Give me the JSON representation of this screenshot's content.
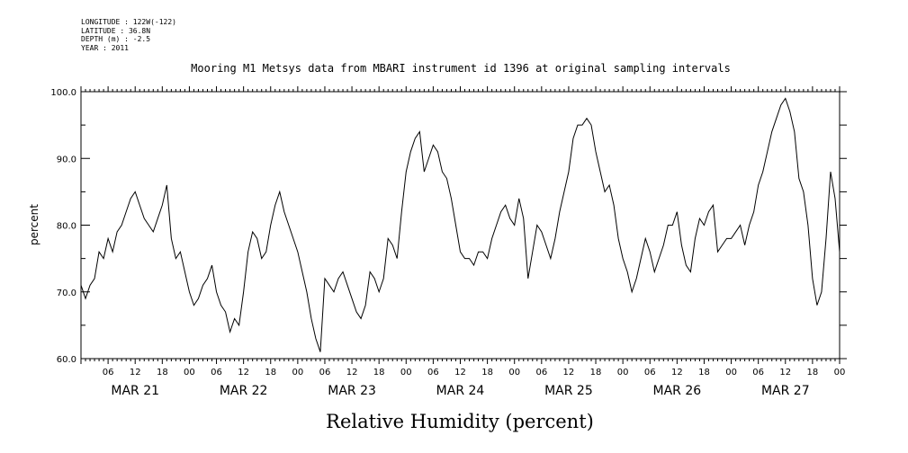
{
  "header": {
    "longitude": "LONGITUDE : 122W(-122)",
    "latitude": "LATITUDE : 36.8N",
    "depth": "DEPTH (m) : -2.5",
    "year": "YEAR : 2011"
  },
  "chart_data": {
    "type": "line",
    "title": "Mooring M1 Metsys data from MBARI instrument id 1396 at original sampling intervals",
    "caption": "Relative Humidity (percent)",
    "ylabel": "percent",
    "ylim": [
      60,
      100
    ],
    "yticks": [
      60,
      70,
      80,
      90,
      100
    ],
    "xlim_hours": [
      0,
      168
    ],
    "hour_tick_labels": [
      "06",
      "12",
      "18",
      "00",
      "06",
      "12",
      "18",
      "00",
      "06",
      "12",
      "18",
      "00",
      "06",
      "12",
      "18",
      "00",
      "06",
      "12",
      "18",
      "00",
      "06",
      "12",
      "18",
      "00",
      "06",
      "12",
      "18",
      "00"
    ],
    "day_labels": [
      "MAR 21",
      "MAR 22",
      "MAR 23",
      "MAR 24",
      "MAR 25",
      "MAR 26",
      "MAR 27"
    ],
    "line_color": "#000000",
    "series": [
      {
        "x": [
          0,
          1,
          2,
          3,
          4,
          5,
          6,
          7,
          8,
          9,
          10,
          11,
          12,
          13,
          14,
          15,
          16,
          17,
          18,
          19,
          20,
          21,
          22,
          23,
          24,
          25,
          26,
          27,
          28,
          29,
          30,
          31,
          32,
          33,
          34,
          35,
          36,
          37,
          38,
          39,
          40,
          41,
          42,
          43,
          44,
          45,
          46,
          47,
          48,
          49,
          50,
          51,
          52,
          53,
          54,
          55,
          56,
          57,
          58,
          59,
          60,
          61,
          62,
          63,
          64,
          65,
          66,
          67,
          68,
          69,
          70,
          71,
          72,
          73,
          74,
          75,
          76,
          77,
          78,
          79,
          80,
          81,
          82,
          83,
          84,
          85,
          86,
          87,
          88,
          89,
          90,
          91,
          92,
          93,
          94,
          95,
          96,
          97,
          98,
          99,
          100,
          101,
          102,
          103,
          104,
          105,
          106,
          107,
          108,
          109,
          110,
          111,
          112,
          113,
          114,
          115,
          116,
          117,
          118,
          119,
          120,
          121,
          122,
          123,
          124,
          125,
          126,
          127,
          128,
          129,
          130,
          131,
          132,
          133,
          134,
          135,
          136,
          137,
          138,
          139,
          140,
          141,
          142,
          143,
          144,
          145,
          146,
          147,
          148,
          149,
          150,
          151,
          152,
          153,
          154,
          155,
          156,
          157,
          158,
          159,
          160,
          161,
          162,
          163,
          164,
          165,
          166,
          167,
          168
        ],
        "y": [
          71,
          69,
          71,
          72,
          76,
          75,
          78,
          76,
          79,
          80,
          82,
          84,
          85,
          83,
          81,
          80,
          79,
          81,
          83,
          86,
          78,
          75,
          76,
          73,
          70,
          68,
          69,
          71,
          72,
          74,
          70,
          68,
          67,
          64,
          66,
          65,
          70,
          76,
          79,
          78,
          75,
          76,
          80,
          83,
          85,
          82,
          80,
          78,
          76,
          73,
          70,
          66,
          63,
          61,
          72,
          71,
          70,
          72,
          73,
          71,
          69,
          67,
          66,
          68,
          73,
          72,
          70,
          72,
          78,
          77,
          75,
          82,
          88,
          91,
          93,
          94,
          88,
          90,
          92,
          91,
          88,
          87,
          84,
          80,
          76,
          75,
          75,
          74,
          76,
          76,
          75,
          78,
          80,
          82,
          83,
          81,
          80,
          84,
          81,
          72,
          76,
          80,
          79,
          77,
          75,
          78,
          82,
          85,
          88,
          93,
          95,
          95,
          96,
          95,
          91,
          88,
          85,
          86,
          83,
          78,
          75,
          73,
          70,
          72,
          75,
          78,
          76,
          73,
          75,
          77,
          80,
          80,
          82,
          77,
          74,
          73,
          78,
          81,
          80,
          82,
          83,
          76,
          77,
          78,
          78,
          79,
          80,
          77,
          80,
          82,
          86,
          88,
          91,
          94,
          96,
          98,
          99,
          97,
          94,
          87,
          85,
          80,
          72,
          68,
          70,
          78,
          88,
          84,
          76
        ]
      }
    ]
  }
}
